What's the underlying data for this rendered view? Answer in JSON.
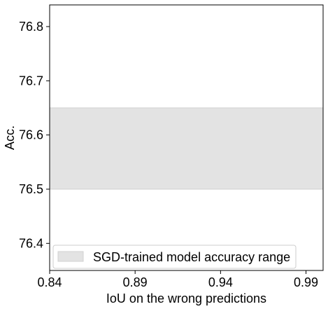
{
  "chart_data": {
    "type": "area",
    "title": "",
    "xlabel": "IoU on the wrong predictions",
    "ylabel": "Acc.",
    "xlim": [
      0.84,
      1.0
    ],
    "ylim": [
      76.35,
      76.84
    ],
    "x_ticks": [
      0.84,
      0.89,
      0.94,
      0.99
    ],
    "x_tick_labels": [
      "0.84",
      "0.89",
      "0.94",
      "0.99"
    ],
    "y_ticks": [
      76.4,
      76.5,
      76.6,
      76.7,
      76.8
    ],
    "y_tick_labels": [
      "76.4",
      "76.5",
      "76.6",
      "76.7",
      "76.8"
    ],
    "grid": false,
    "legend_position": "bottom-left",
    "series": [
      {
        "name": "SGD-trained model accuracy range",
        "kind": "band",
        "x": [
          0.84,
          1.0
        ],
        "y_low": 76.5,
        "y_high": 76.65,
        "color": "#e3e3e3",
        "edge_color": "#d0d0d0"
      }
    ]
  }
}
